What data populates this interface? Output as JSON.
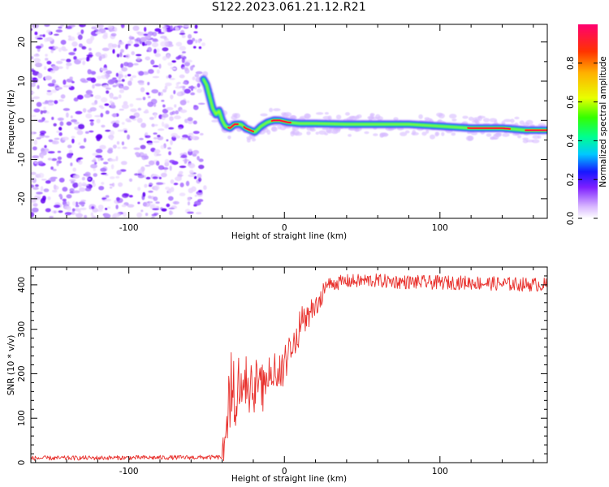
{
  "title": "S122.2023.061.21.12.R21",
  "chart_data": [
    {
      "type": "heatmap",
      "xlabel": "Height of straight line (km)",
      "ylabel": "Frequency (Hz)",
      "xlim": [
        -163,
        169
      ],
      "ylim": [
        -25,
        24.5
      ],
      "xticks": [
        -100,
        0,
        100
      ],
      "yticks": [
        -20,
        -10,
        0,
        10,
        20
      ],
      "colorbar": {
        "label": "Normalized spectral amplitude",
        "range": [
          0,
          1
        ],
        "ticks": [
          0.0,
          0.2,
          0.4,
          0.6,
          0.8
        ]
      },
      "noise_region_x": [
        -163,
        -53
      ],
      "ridge": [
        [
          -52,
          10.5
        ],
        [
          -50,
          9
        ],
        [
          -48,
          6
        ],
        [
          -46,
          3
        ],
        [
          -44,
          1.5
        ],
        [
          -42,
          2.5
        ],
        [
          -40,
          0
        ],
        [
          -38,
          -1.5
        ],
        [
          -35,
          -2
        ],
        [
          -32,
          -1
        ],
        [
          -28,
          -1
        ],
        [
          -25,
          -2
        ],
        [
          -22,
          -2.5
        ],
        [
          -19,
          -3
        ],
        [
          -15,
          -1.5
        ],
        [
          -11,
          -0.5
        ],
        [
          -7,
          0
        ],
        [
          -3,
          0
        ],
        [
          2,
          -0.5
        ],
        [
          10,
          -0.8
        ],
        [
          20,
          -0.8
        ],
        [
          40,
          -1
        ],
        [
          60,
          -1
        ],
        [
          80,
          -1
        ],
        [
          100,
          -1.5
        ],
        [
          120,
          -2
        ],
        [
          140,
          -2
        ],
        [
          155,
          -2.5
        ],
        [
          169,
          -2.5
        ]
      ]
    },
    {
      "type": "line",
      "xlabel": "Height of straight line (km)",
      "ylabel": "SNR (10 * v/v)",
      "xlim": [
        -163,
        169
      ],
      "ylim": [
        0,
        440
      ],
      "xticks": [
        -100,
        0,
        100
      ],
      "yticks": [
        0,
        100,
        200,
        300,
        400
      ],
      "color": "#e8302c",
      "series": [
        {
          "x": [
            -163,
            -40,
            -38,
            -36,
            -34,
            -32,
            -30,
            -28,
            -26,
            -24,
            -22,
            -20,
            -18,
            -16,
            -14,
            -12,
            -10,
            -8,
            -6,
            -4,
            -2,
            0,
            2,
            4,
            6,
            8,
            10,
            12,
            14,
            16,
            18,
            20,
            22,
            24,
            26,
            28,
            30,
            35,
            40,
            45,
            55,
            65,
            80,
            100,
            120,
            140,
            169
          ],
          "y": [
            10,
            12,
            40,
            120,
            170,
            200,
            205,
            210,
            215,
            205,
            200,
            210,
            220,
            215,
            210,
            225,
            235,
            240,
            245,
            250,
            255,
            270,
            285,
            300,
            315,
            330,
            345,
            355,
            365,
            372,
            380,
            386,
            390,
            394,
            397,
            400,
            402,
            405,
            408,
            408,
            410,
            408,
            406,
            405,
            405,
            402,
            400
          ]
        }
      ]
    }
  ]
}
